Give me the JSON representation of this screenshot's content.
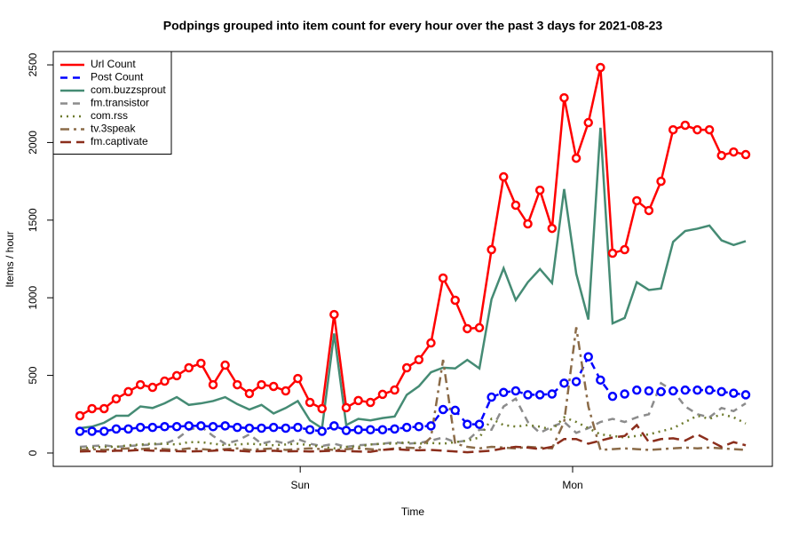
{
  "chart_data": {
    "type": "line",
    "title": "Podpings grouped into item count for every  hour  over the past 3 days for 2021-08-23",
    "x_label": "Time",
    "y_label": "Items / hour",
    "x": [
      0,
      1,
      2,
      3,
      4,
      5,
      6,
      7,
      8,
      9,
      10,
      11,
      12,
      13,
      14,
      15,
      16,
      17,
      18,
      19,
      20,
      21,
      22,
      23,
      24,
      25,
      26,
      27,
      28,
      29,
      30,
      31,
      32,
      33,
      34,
      35,
      36,
      37,
      38,
      39,
      40,
      41,
      42,
      43,
      44,
      45,
      46,
      47,
      48,
      49,
      50,
      51,
      52,
      53,
      54,
      55
    ],
    "xlim": [
      -2.2,
      57.2
    ],
    "xticks": [
      {
        "value": 18.2,
        "label": "Sun"
      },
      {
        "value": 40.7,
        "label": "Mon"
      }
    ],
    "ylim": [
      -86,
      2586
    ],
    "yticks": [
      0,
      500,
      1000,
      1500,
      2000,
      2500
    ],
    "legend": "topleft",
    "series": [
      {
        "name": "Url Count",
        "color": "#ff0000",
        "dash": "solid",
        "marker": "o",
        "values": [
          240,
          286,
          286,
          349,
          395,
          440,
          423,
          463,
          498,
          549,
          578,
          440,
          566,
          440,
          383,
          440,
          429,
          400,
          480,
          326,
          286,
          892,
          292,
          338,
          326,
          378,
          406,
          549,
          601,
          709,
          1127,
          984,
          801,
          807,
          1310,
          1779,
          1596,
          1476,
          1693,
          1447,
          2288,
          1899,
          2128,
          2483,
          1287,
          1310,
          1625,
          1562,
          1750,
          2082,
          2111,
          2082,
          2082,
          1916,
          1939,
          1922
        ]
      },
      {
        "name": "Post Count",
        "color": "#0000ff",
        "dash": "dashed",
        "marker": "o",
        "values": [
          140,
          140,
          140,
          155,
          155,
          165,
          165,
          170,
          170,
          175,
          175,
          170,
          175,
          165,
          160,
          160,
          165,
          160,
          165,
          150,
          140,
          175,
          145,
          150,
          150,
          150,
          155,
          165,
          170,
          175,
          280,
          275,
          185,
          185,
          360,
          390,
          400,
          375,
          375,
          380,
          450,
          460,
          620,
          470,
          365,
          380,
          405,
          400,
          395,
          400,
          405,
          405,
          405,
          395,
          385,
          375
        ]
      },
      {
        "name": "com.buzzsprout",
        "color": "#458b74",
        "dash": "solid",
        "values": [
          160,
          170,
          195,
          240,
          240,
          300,
          290,
          320,
          360,
          310,
          320,
          335,
          360,
          315,
          280,
          310,
          255,
          290,
          335,
          210,
          160,
          770,
          180,
          220,
          210,
          225,
          235,
          375,
          430,
          520,
          550,
          545,
          600,
          545,
          990,
          1190,
          985,
          1100,
          1185,
          1095,
          1700,
          1155,
          860,
          2095,
          835,
          870,
          1100,
          1050,
          1060,
          1360,
          1430,
          1445,
          1465,
          1370,
          1340,
          1365
        ]
      },
      {
        "name": "fm.transistor",
        "color": "#8c8c8c",
        "dash": "dashed",
        "values": [
          40,
          45,
          50,
          40,
          45,
          50,
          55,
          60,
          90,
          150,
          170,
          110,
          60,
          80,
          120,
          60,
          80,
          60,
          90,
          60,
          45,
          60,
          40,
          50,
          55,
          60,
          70,
          60,
          65,
          80,
          100,
          70,
          80,
          150,
          150,
          300,
          350,
          200,
          130,
          170,
          200,
          130,
          160,
          200,
          220,
          200,
          230,
          250,
          450,
          400,
          300,
          250,
          230,
          290,
          270,
          320
        ]
      },
      {
        "name": "com.rss",
        "color": "#6e7b2e",
        "dash": "dotted",
        "values": [
          30,
          35,
          40,
          40,
          50,
          55,
          60,
          60,
          55,
          70,
          70,
          60,
          50,
          55,
          60,
          55,
          50,
          55,
          60,
          50,
          40,
          30,
          40,
          40,
          55,
          60,
          60,
          70,
          60,
          65,
          60,
          70,
          80,
          100,
          220,
          180,
          170,
          180,
          170,
          150,
          230,
          200,
          160,
          120,
          110,
          100,
          110,
          120,
          140,
          160,
          200,
          240,
          220,
          250,
          230,
          190
        ]
      },
      {
        "name": "tv.3speak",
        "color": "#8b6b48",
        "dash": "twodash",
        "values": [
          20,
          25,
          20,
          25,
          30,
          25,
          30,
          25,
          20,
          30,
          25,
          20,
          25,
          30,
          20,
          25,
          30,
          20,
          25,
          30,
          25,
          20,
          25,
          30,
          25,
          20,
          30,
          35,
          30,
          100,
          600,
          60,
          40,
          30,
          40,
          35,
          30,
          40,
          35,
          30,
          200,
          810,
          300,
          20,
          25,
          30,
          25,
          20,
          25,
          30,
          35,
          30,
          35,
          30,
          25,
          20
        ]
      },
      {
        "name": "fm.captivate",
        "color": "#8b2e1c",
        "dash": "longdash",
        "values": [
          10,
          12,
          10,
          15,
          15,
          20,
          15,
          15,
          12,
          10,
          12,
          15,
          20,
          15,
          10,
          12,
          15,
          10,
          12,
          10,
          12,
          15,
          12,
          10,
          8,
          20,
          25,
          20,
          18,
          20,
          15,
          10,
          5,
          10,
          15,
          30,
          40,
          35,
          25,
          40,
          90,
          90,
          60,
          80,
          100,
          110,
          180,
          70,
          90,
          95,
          80,
          120,
          80,
          40,
          70,
          50
        ]
      }
    ]
  }
}
